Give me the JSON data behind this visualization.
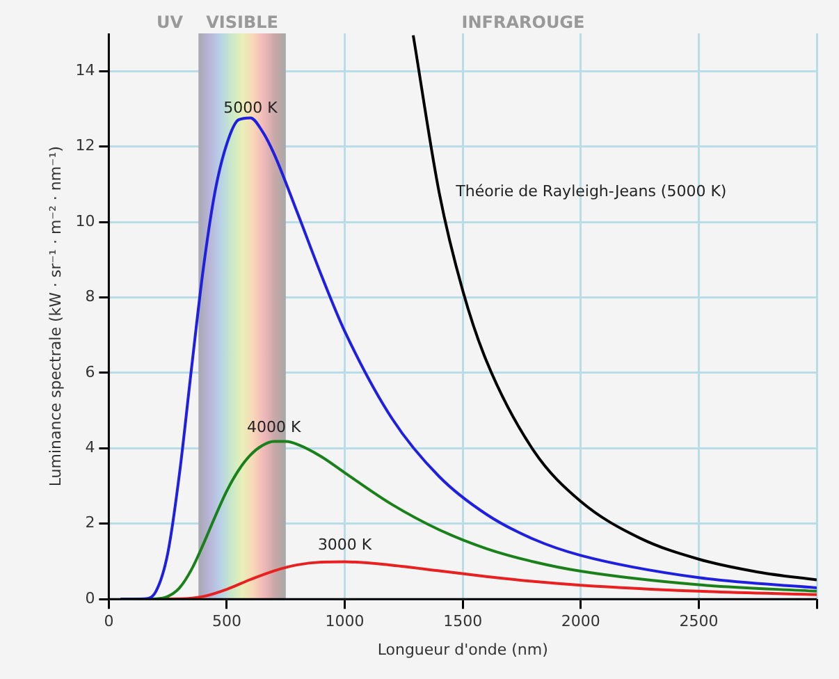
{
  "chart_data": {
    "type": "line",
    "xlabel": "Longueur d'onde (nm)",
    "ylabel": "Luminance spectrale (kW · sr⁻¹ · m⁻² · nm⁻¹)",
    "xlim": [
      0,
      3000
    ],
    "ylim": [
      0,
      15
    ],
    "xticks": [
      0,
      500,
      1000,
      1500,
      2000,
      2500,
      {
        "value": 3000,
        "label": null
      }
    ],
    "yticks": [
      0,
      2,
      4,
      6,
      8,
      10,
      12,
      14
    ],
    "grid": true,
    "legend": false,
    "marker": "none",
    "line_style": "solid",
    "bands": [
      {
        "axis": "x",
        "from": 380,
        "to": 750,
        "label": "VISIBLE"
      }
    ],
    "annotations": [
      "UV",
      "INFRAROUGE"
    ],
    "series": [
      {
        "name": "5000 K",
        "color": "#1f1fe0",
        "x": [
          50,
          150,
          200,
          250,
          300,
          350,
          400,
          450,
          500,
          550,
          600,
          650,
          700,
          800,
          900,
          1000,
          1200,
          1400,
          1600,
          1800,
          2000,
          2500,
          3000
        ],
        "values": [
          0,
          0.01,
          0.21,
          1.22,
          3.35,
          6.09,
          8.74,
          10.8,
          12.07,
          12.71,
          12.76,
          12.41,
          11.81,
          10.23,
          8.6,
          7.1,
          4.79,
          3.25,
          2.25,
          1.59,
          1.16,
          0.57,
          0.3
        ]
      },
      {
        "name": "4000 K",
        "color": "#1a801a",
        "x": [
          50,
          200,
          250,
          300,
          350,
          400,
          450,
          500,
          550,
          600,
          650,
          700,
          750,
          800,
          900,
          1000,
          1200,
          1400,
          1600,
          1800,
          2000,
          2500,
          3000
        ],
        "values": [
          0,
          0.01,
          0.07,
          0.3,
          0.78,
          1.45,
          2.18,
          2.87,
          3.42,
          3.82,
          4.07,
          4.18,
          4.18,
          4.1,
          3.78,
          3.35,
          2.51,
          1.84,
          1.34,
          0.99,
          0.74,
          0.38,
          0.21
        ]
      },
      {
        "name": "3000 K",
        "color": "#e82020",
        "x": [
          50,
          300,
          400,
          500,
          600,
          700,
          800,
          900,
          1000,
          1200,
          1400,
          1600,
          1800,
          2000,
          2500,
          3000
        ],
        "values": [
          0,
          0.01,
          0.07,
          0.26,
          0.52,
          0.75,
          0.91,
          0.98,
          0.99,
          0.9,
          0.75,
          0.6,
          0.47,
          0.37,
          0.21,
          0.12
        ]
      },
      {
        "name": "Théorie de Rayleigh-Jeans (5000 K)",
        "color": "#000000",
        "x": [
          1290,
          1400,
          1500,
          1600,
          1800,
          2000,
          2250,
          2500,
          2750,
          3000
        ],
        "values": [
          14.95,
          10.78,
          8.18,
          6.32,
          3.94,
          2.59,
          1.62,
          1.06,
          0.72,
          0.51
        ]
      }
    ]
  }
}
